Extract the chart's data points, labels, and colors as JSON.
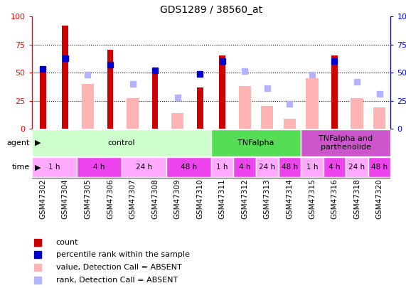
{
  "title": "GDS1289 / 38560_at",
  "samples": [
    "GSM47302",
    "GSM47304",
    "GSM47305",
    "GSM47306",
    "GSM47307",
    "GSM47308",
    "GSM47309",
    "GSM47310",
    "GSM47311",
    "GSM47312",
    "GSM47313",
    "GSM47314",
    "GSM47315",
    "GSM47316",
    "GSM47318",
    "GSM47320"
  ],
  "count_values": [
    52,
    92,
    null,
    70,
    null,
    50,
    null,
    37,
    65,
    null,
    null,
    null,
    null,
    65,
    null,
    null
  ],
  "count_color": "#cc0000",
  "absent_value_values": [
    null,
    null,
    40,
    null,
    27,
    null,
    14,
    null,
    null,
    38,
    20,
    9,
    45,
    null,
    27,
    19
  ],
  "absent_value_color": "#ffb3b3",
  "percentile_rank_values": [
    53,
    63,
    null,
    57,
    null,
    52,
    null,
    49,
    60,
    null,
    null,
    null,
    null,
    60,
    null,
    null
  ],
  "percentile_rank_color": "#0000cc",
  "absent_rank_values": [
    null,
    null,
    48,
    null,
    40,
    null,
    28,
    null,
    null,
    51,
    36,
    22,
    48,
    null,
    42,
    31
  ],
  "absent_rank_color": "#b3b3ff",
  "ylim": [
    0,
    100
  ],
  "yticks": [
    0,
    25,
    50,
    75,
    100
  ],
  "agent_groups": [
    {
      "label": "control",
      "start": 0,
      "end": 8,
      "color": "#ccffcc"
    },
    {
      "label": "TNFalpha",
      "start": 8,
      "end": 12,
      "color": "#55dd55"
    },
    {
      "label": "TNFalpha and\nparthenolide",
      "start": 12,
      "end": 16,
      "color": "#cc55cc"
    }
  ],
  "time_groups": [
    {
      "label": "1 h",
      "start": 0,
      "end": 2,
      "color": "#ffaaff"
    },
    {
      "label": "4 h",
      "start": 2,
      "end": 4,
      "color": "#ee44ee"
    },
    {
      "label": "24 h",
      "start": 4,
      "end": 6,
      "color": "#ffaaff"
    },
    {
      "label": "48 h",
      "start": 6,
      "end": 8,
      "color": "#ee44ee"
    },
    {
      "label": "1 h",
      "start": 8,
      "end": 9,
      "color": "#ffaaff"
    },
    {
      "label": "4 h",
      "start": 9,
      "end": 10,
      "color": "#ee44ee"
    },
    {
      "label": "24 h",
      "start": 10,
      "end": 11,
      "color": "#ffaaff"
    },
    {
      "label": "48 h",
      "start": 11,
      "end": 12,
      "color": "#ee44ee"
    },
    {
      "label": "1 h",
      "start": 12,
      "end": 13,
      "color": "#ffaaff"
    },
    {
      "label": "4 h",
      "start": 13,
      "end": 14,
      "color": "#ee44ee"
    },
    {
      "label": "24 h",
      "start": 14,
      "end": 15,
      "color": "#ffaaff"
    },
    {
      "label": "48 h",
      "start": 15,
      "end": 16,
      "color": "#ee44ee"
    }
  ],
  "legend_items": [
    {
      "label": "count",
      "color": "#cc0000"
    },
    {
      "label": "percentile rank within the sample",
      "color": "#0000cc"
    },
    {
      "label": "value, Detection Call = ABSENT",
      "color": "#ffb3b3"
    },
    {
      "label": "rank, Detection Call = ABSENT",
      "color": "#b3b3ff"
    }
  ],
  "bar_width": 0.55,
  "count_bar_width": 0.28,
  "marker_size": 6,
  "grid_yticks": [
    25,
    50,
    75
  ]
}
